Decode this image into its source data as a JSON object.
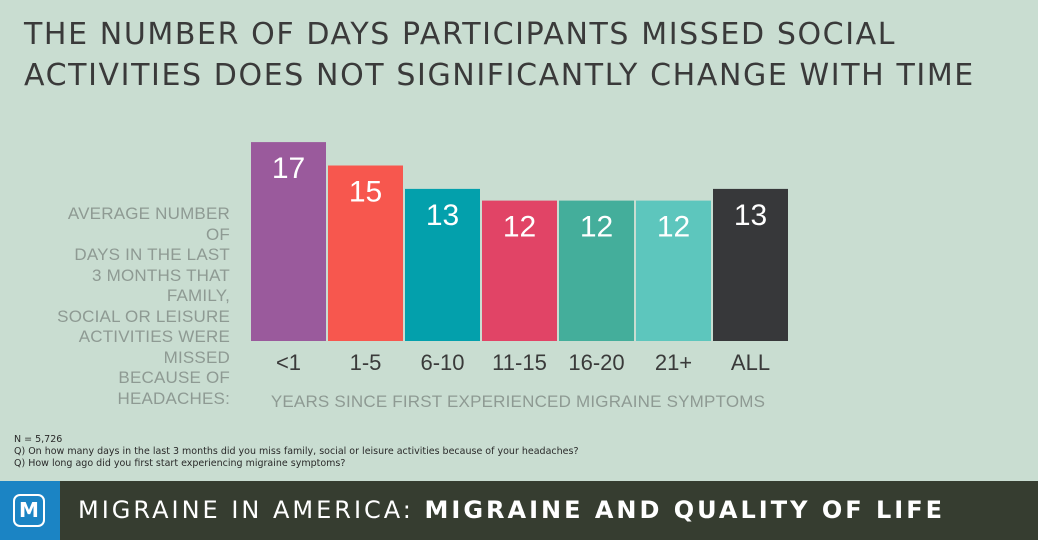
{
  "title_lines": [
    "THE NUMBER OF DAYS PARTICIPANTS MISSED SOCIAL",
    "ACTIVITIES DOES NOT SIGNIFICANTLY CHANGE WITH TIME"
  ],
  "colors": {
    "background": "#c9ddd1",
    "footer": "#363d30",
    "logo": "#1b84c4"
  },
  "chart_data": {
    "type": "bar",
    "title": "THE NUMBER OF DAYS PARTICIPANTS MISSED SOCIAL ACTIVITIES DOES NOT SIGNIFICANTLY CHANGE WITH TIME",
    "ylabel_lines": [
      "AVERAGE NUMBER OF",
      "DAYS IN THE LAST",
      "3 MONTHS THAT FAMILY,",
      "SOCIAL OR LEISURE",
      "ACTIVITIES WERE MISSED",
      "BECAUSE OF HEADACHES:"
    ],
    "xlabel": "YEARS SINCE FIRST EXPERIENCED MIGRAINE SYMPTOMS",
    "categories": [
      "<1",
      "1-5",
      "6-10",
      "11-15",
      "16-20",
      "21+",
      "ALL"
    ],
    "values": [
      17,
      15,
      13,
      12,
      12,
      12,
      13
    ],
    "bar_colors": [
      "#9a5a9c",
      "#f7574e",
      "#03a0ac",
      "#e14466",
      "#44ae9b",
      "#5dc6bd",
      "#37383a"
    ],
    "data_labels": true,
    "grid": false,
    "legend": false
  },
  "footnotes": [
    "N = 5,726",
    "Q) On how many days in the last 3 months did you miss family, social or leisure activities because of your headaches?",
    "Q) How long ago did you first start experiencing migraine symptoms?"
  ],
  "footer": {
    "logo_letter": "M",
    "logo_icon": "migraine-logo-icon",
    "title_regular": "MIGRAINE IN AMERICA: ",
    "title_bold": "MIGRAINE AND QUALITY OF LIFE"
  }
}
